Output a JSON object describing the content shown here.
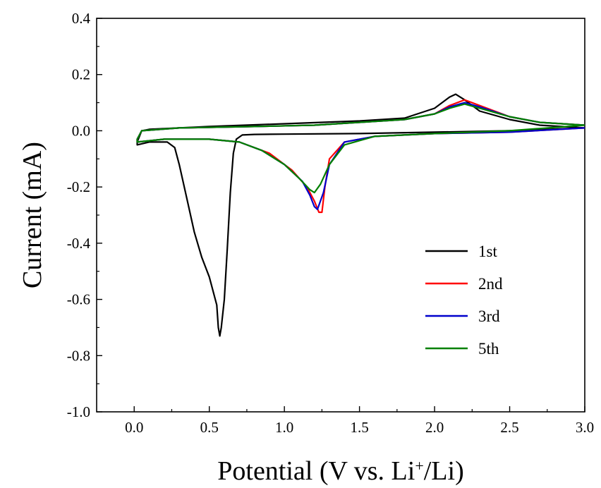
{
  "chart_data": {
    "type": "line",
    "title": "",
    "xlabel": "Potential (V vs. Li+/Li)",
    "xlabel_parts": {
      "main": "Potential (V vs. Li",
      "sup": "+",
      "tail": "/Li)"
    },
    "ylabel": "Current (mA)",
    "xlim": [
      -0.25,
      3.0
    ],
    "ylim": [
      -1.0,
      0.4
    ],
    "x_ticks": [
      "0.0",
      "0.5",
      "1.0",
      "1.5",
      "2.0",
      "2.5",
      "3.0"
    ],
    "y_ticks": [
      "0.4",
      "0.2",
      "0.0",
      "-0.2",
      "-0.4",
      "-0.6",
      "-0.8",
      "-1.0"
    ],
    "x_tick_values": [
      0.0,
      0.5,
      1.0,
      1.5,
      2.0,
      2.5,
      3.0
    ],
    "y_tick_values": [
      0.4,
      0.2,
      0.0,
      -0.2,
      -0.4,
      -0.6,
      -0.8,
      -1.0
    ],
    "grid": false,
    "legend_position": "bottom-right",
    "series": [
      {
        "name": "1st",
        "color": "#000000",
        "cathodic": [
          [
            3.0,
            0.01
          ],
          [
            2.5,
            0.0
          ],
          [
            2.0,
            -0.005
          ],
          [
            1.5,
            -0.01
          ],
          [
            1.0,
            -0.012
          ],
          [
            0.8,
            -0.013
          ],
          [
            0.72,
            -0.015
          ],
          [
            0.68,
            -0.03
          ],
          [
            0.66,
            -0.08
          ],
          [
            0.64,
            -0.22
          ],
          [
            0.62,
            -0.42
          ],
          [
            0.6,
            -0.6
          ],
          [
            0.58,
            -0.7
          ],
          [
            0.57,
            -0.73
          ],
          [
            0.56,
            -0.7
          ],
          [
            0.55,
            -0.62
          ],
          [
            0.5,
            -0.52
          ],
          [
            0.45,
            -0.45
          ],
          [
            0.4,
            -0.36
          ],
          [
            0.35,
            -0.24
          ],
          [
            0.3,
            -0.12
          ],
          [
            0.27,
            -0.06
          ],
          [
            0.22,
            -0.04
          ],
          [
            0.1,
            -0.04
          ],
          [
            0.02,
            -0.05
          ]
        ],
        "anodic": [
          [
            0.02,
            -0.04
          ],
          [
            0.05,
            0.0
          ],
          [
            0.1,
            0.005
          ],
          [
            0.3,
            0.01
          ],
          [
            0.5,
            0.015
          ],
          [
            1.0,
            0.025
          ],
          [
            1.5,
            0.035
          ],
          [
            1.8,
            0.045
          ],
          [
            2.0,
            0.08
          ],
          [
            2.1,
            0.12
          ],
          [
            2.14,
            0.13
          ],
          [
            2.2,
            0.11
          ],
          [
            2.3,
            0.07
          ],
          [
            2.5,
            0.04
          ],
          [
            2.7,
            0.02
          ],
          [
            3.0,
            0.01
          ]
        ]
      },
      {
        "name": "2nd",
        "color": "#ff0000",
        "cathodic": [
          [
            3.0,
            0.01
          ],
          [
            2.5,
            -0.005
          ],
          [
            2.0,
            -0.01
          ],
          [
            1.6,
            -0.02
          ],
          [
            1.4,
            -0.04
          ],
          [
            1.3,
            -0.1
          ],
          [
            1.27,
            -0.2
          ],
          [
            1.25,
            -0.29
          ],
          [
            1.23,
            -0.29
          ],
          [
            1.2,
            -0.25
          ],
          [
            1.15,
            -0.2
          ],
          [
            1.05,
            -0.14
          ],
          [
            0.9,
            -0.08
          ],
          [
            0.7,
            -0.04
          ],
          [
            0.5,
            -0.03
          ],
          [
            0.2,
            -0.03
          ],
          [
            0.02,
            -0.04
          ]
        ],
        "anodic": [
          [
            0.02,
            -0.03
          ],
          [
            0.05,
            0.0
          ],
          [
            0.3,
            0.01
          ],
          [
            0.8,
            0.015
          ],
          [
            1.2,
            0.02
          ],
          [
            1.5,
            0.03
          ],
          [
            1.8,
            0.04
          ],
          [
            2.0,
            0.06
          ],
          [
            2.1,
            0.09
          ],
          [
            2.2,
            0.11
          ],
          [
            2.3,
            0.09
          ],
          [
            2.5,
            0.05
          ],
          [
            2.7,
            0.03
          ],
          [
            3.0,
            0.02
          ]
        ]
      },
      {
        "name": "3rd",
        "color": "#0000cc",
        "cathodic": [
          [
            3.0,
            0.01
          ],
          [
            2.5,
            -0.005
          ],
          [
            2.0,
            -0.01
          ],
          [
            1.6,
            -0.02
          ],
          [
            1.4,
            -0.04
          ],
          [
            1.3,
            -0.12
          ],
          [
            1.26,
            -0.22
          ],
          [
            1.22,
            -0.28
          ],
          [
            1.2,
            -0.27
          ],
          [
            1.17,
            -0.23
          ],
          [
            1.12,
            -0.18
          ],
          [
            1.0,
            -0.12
          ],
          [
            0.85,
            -0.07
          ],
          [
            0.7,
            -0.04
          ],
          [
            0.5,
            -0.03
          ],
          [
            0.2,
            -0.03
          ],
          [
            0.02,
            -0.04
          ]
        ],
        "anodic": [
          [
            0.02,
            -0.03
          ],
          [
            0.05,
            0.0
          ],
          [
            0.3,
            0.01
          ],
          [
            0.8,
            0.015
          ],
          [
            1.2,
            0.02
          ],
          [
            1.5,
            0.03
          ],
          [
            1.8,
            0.04
          ],
          [
            2.0,
            0.06
          ],
          [
            2.1,
            0.085
          ],
          [
            2.2,
            0.1
          ],
          [
            2.3,
            0.085
          ],
          [
            2.5,
            0.05
          ],
          [
            2.7,
            0.03
          ],
          [
            3.0,
            0.02
          ]
        ]
      },
      {
        "name": "5th",
        "color": "#008000",
        "cathodic": [
          [
            3.0,
            0.02
          ],
          [
            2.5,
            0.0
          ],
          [
            2.0,
            -0.01
          ],
          [
            1.6,
            -0.02
          ],
          [
            1.4,
            -0.05
          ],
          [
            1.3,
            -0.12
          ],
          [
            1.24,
            -0.19
          ],
          [
            1.2,
            -0.22
          ],
          [
            1.17,
            -0.21
          ],
          [
            1.1,
            -0.17
          ],
          [
            1.0,
            -0.12
          ],
          [
            0.85,
            -0.07
          ],
          [
            0.7,
            -0.04
          ],
          [
            0.5,
            -0.03
          ],
          [
            0.2,
            -0.03
          ],
          [
            0.02,
            -0.04
          ]
        ],
        "anodic": [
          [
            0.02,
            -0.03
          ],
          [
            0.05,
            0.0
          ],
          [
            0.3,
            0.01
          ],
          [
            0.8,
            0.015
          ],
          [
            1.2,
            0.02
          ],
          [
            1.5,
            0.03
          ],
          [
            1.8,
            0.04
          ],
          [
            2.0,
            0.06
          ],
          [
            2.1,
            0.08
          ],
          [
            2.2,
            0.095
          ],
          [
            2.3,
            0.08
          ],
          [
            2.5,
            0.05
          ],
          [
            2.7,
            0.03
          ],
          [
            3.0,
            0.02
          ]
        ]
      }
    ]
  }
}
